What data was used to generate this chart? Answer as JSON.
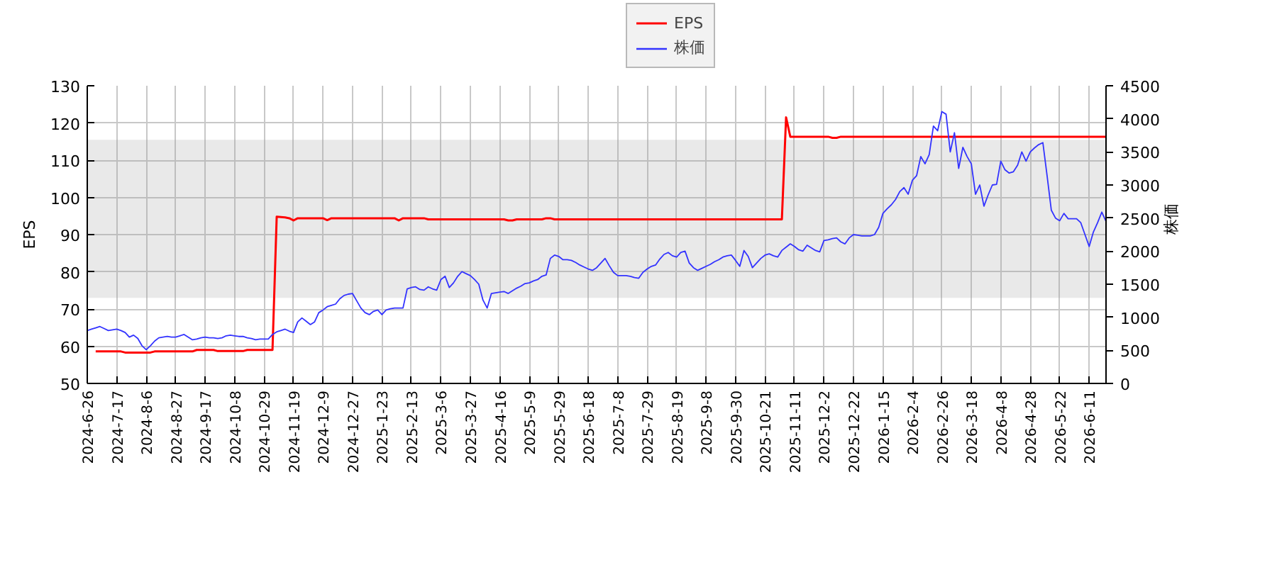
{
  "chart_data": {
    "type": "line",
    "ylabel": "EPS",
    "y2label": "株価",
    "grid": true,
    "legend": "top",
    "categories": [
      "2024-6-26",
      null,
      null,
      null,
      null,
      null,
      null,
      "2024-7-17",
      null,
      null,
      null,
      null,
      null,
      null,
      "2024-8-6",
      null,
      null,
      null,
      null,
      null,
      null,
      "2024-8-27",
      null,
      null,
      null,
      null,
      null,
      null,
      "2024-9-17",
      null,
      null,
      null,
      null,
      null,
      null,
      "2024-10-8",
      null,
      null,
      null,
      null,
      null,
      null,
      "2024-10-29",
      null,
      null,
      null,
      null,
      null,
      null,
      "2024-11-19",
      null,
      null,
      null,
      null,
      null,
      null,
      "2024-12-9",
      null,
      null,
      null,
      null,
      null,
      null,
      "2024-12-27",
      null,
      null,
      null,
      null,
      null,
      null,
      "2025-1-23",
      null,
      null,
      null,
      null,
      null,
      null,
      "2025-2-13",
      null,
      null,
      null,
      null,
      null,
      null,
      "2025-3-6",
      null,
      null,
      null,
      null,
      null,
      null,
      "2025-3-27",
      null,
      null,
      null,
      null,
      null,
      null,
      "2025-4-16",
      null,
      null,
      null,
      null,
      null,
      null,
      "2025-5-9",
      null,
      null,
      null,
      null,
      null,
      null,
      "2025-5-29",
      null,
      null,
      null,
      null,
      null,
      null,
      "2025-6-18",
      null,
      null,
      null,
      null,
      null,
      null,
      "2025-7-8",
      null,
      null,
      null,
      null,
      null,
      null,
      "2025-7-29",
      null,
      null,
      null,
      null,
      null,
      null,
      "2025-8-19",
      null,
      null,
      null,
      null,
      null,
      null,
      "2025-9-8",
      null,
      null,
      null,
      null,
      null,
      null,
      "2025-9-30",
      null,
      null,
      null,
      null,
      null,
      null,
      "2025-10-21",
      null,
      null,
      null,
      null,
      null,
      null,
      "2025-11-11",
      null,
      null,
      null,
      null,
      null,
      null,
      "2025-12-2",
      null,
      null,
      null,
      null,
      null,
      null,
      "2025-12-22",
      null,
      null,
      null,
      null,
      null,
      null,
      "2026-1-15",
      null,
      null,
      null,
      null,
      null,
      null,
      "2026-2-4",
      null,
      null,
      null,
      null,
      null,
      null,
      "2026-2-26",
      null,
      null,
      null,
      null,
      null,
      null,
      "2026-3-18",
      null,
      null,
      null,
      null,
      null,
      null,
      "2026-4-8",
      null,
      null,
      null,
      null,
      null,
      null,
      "2026-4-28",
      null,
      null,
      null,
      null,
      null,
      null,
      "2026-5-22",
      null,
      null,
      null,
      null,
      null,
      null,
      "2026-6-11",
      null,
      null,
      null,
      null
    ],
    "ylim": [
      50,
      130
    ],
    "yticks": [
      50,
      60,
      70,
      80,
      90,
      100,
      110,
      120,
      130
    ],
    "y2lim": [
      0,
      4500
    ],
    "y2ticks": [
      0,
      500,
      1000,
      1500,
      2000,
      2500,
      3000,
      3500,
      4000,
      4500
    ],
    "bands": [
      {
        "axis": "y",
        "from": 73,
        "to": 115.5,
        "color": "#999999"
      }
    ],
    "series": [
      {
        "name": "EPS",
        "color": "#ff0000",
        "values": [
          null,
          null,
          58.6,
          58.6,
          58.6,
          58.6,
          58.6,
          58.6,
          58.6,
          58.3,
          58.3,
          58.3,
          58.3,
          58.3,
          58.3,
          58.3,
          58.6,
          58.6,
          58.6,
          58.6,
          58.6,
          58.6,
          58.6,
          58.6,
          58.6,
          58.6,
          59.0,
          59.0,
          59.0,
          59.0,
          59.0,
          58.7,
          58.7,
          58.7,
          58.7,
          58.7,
          58.7,
          58.7,
          59.0,
          59.0,
          59.0,
          59.0,
          59.0,
          59.0,
          59.0,
          94.8,
          94.7,
          94.6,
          94.4,
          93.8,
          94.4,
          94.4,
          94.4,
          94.4,
          94.4,
          94.4,
          94.4,
          93.9,
          94.4,
          94.4,
          94.4,
          94.4,
          94.4,
          94.4,
          94.4,
          94.4,
          94.4,
          94.4,
          94.4,
          94.4,
          94.4,
          94.4,
          94.4,
          94.4,
          93.8,
          94.4,
          94.4,
          94.4,
          94.4,
          94.4,
          94.4,
          94.1,
          94.1,
          94.1,
          94.1,
          94.1,
          94.1,
          94.1,
          94.1,
          94.1,
          94.1,
          94.1,
          94.1,
          94.1,
          94.1,
          94.1,
          94.1,
          94.1,
          94.1,
          94.1,
          93.8,
          93.8,
          94.1,
          94.1,
          94.1,
          94.1,
          94.1,
          94.1,
          94.1,
          94.4,
          94.4,
          94.1,
          94.1,
          94.1,
          94.1,
          94.1,
          94.1,
          94.1,
          94.1,
          94.1,
          94.1,
          94.1,
          94.1,
          94.1,
          94.1,
          94.1,
          94.1,
          94.1,
          94.1,
          94.1,
          94.1,
          94.1,
          94.1,
          94.1,
          94.1,
          94.1,
          94.1,
          94.1,
          94.1,
          94.1,
          94.1,
          94.1,
          94.1,
          94.1,
          94.1,
          94.1,
          94.1,
          94.1,
          94.1,
          94.1,
          94.1,
          94.1,
          94.1,
          94.1,
          94.1,
          94.1,
          94.1,
          94.1,
          94.1,
          94.1,
          94.1,
          94.1,
          94.1,
          94.1,
          94.1,
          94.1,
          121.5,
          116.3,
          116.3,
          116.3,
          116.3,
          116.3,
          116.3,
          116.3,
          116.3,
          116.3,
          116.3,
          116.0,
          116.0,
          116.3,
          116.3,
          116.3,
          116.3,
          116.3,
          116.3,
          116.3,
          116.3,
          116.3,
          116.3,
          116.3,
          116.3,
          116.3,
          116.3,
          116.3,
          116.3,
          116.3,
          116.3,
          116.3,
          116.3,
          116.3,
          116.3,
          116.3,
          116.3,
          116.3,
          116.3,
          116.3,
          116.3,
          116.3,
          116.3,
          116.3,
          116.3,
          116.3,
          116.3,
          116.3,
          116.3,
          116.3,
          116.3,
          116.3,
          116.3,
          116.3,
          116.3,
          116.3,
          116.3,
          116.3,
          116.3,
          116.3,
          116.3,
          116.3,
          116.3,
          116.3,
          116.3,
          116.3,
          116.3,
          116.3,
          116.3,
          116.3,
          116.3,
          116.3,
          116.3,
          116.3,
          116.3,
          116.3,
          116.3
        ]
      },
      {
        "name": "株価",
        "color": "#3333ff",
        "axis": "y2",
        "values": [
          800,
          820,
          840,
          860,
          830,
          800,
          810,
          820,
          800,
          770,
          700,
          730,
          680,
          570,
          510,
          570,
          640,
          690,
          700,
          710,
          700,
          700,
          720,
          740,
          700,
          660,
          670,
          690,
          700,
          690,
          690,
          680,
          690,
          720,
          730,
          720,
          710,
          710,
          690,
          680,
          660,
          670,
          670,
          670,
          740,
          780,
          800,
          820,
          790,
          770,
          930,
          990,
          940,
          890,
          930,
          1070,
          1110,
          1160,
          1180,
          1200,
          1280,
          1330,
          1350,
          1360,
          1250,
          1140,
          1070,
          1040,
          1090,
          1110,
          1040,
          1110,
          1130,
          1140,
          1140,
          1140,
          1430,
          1450,
          1460,
          1420,
          1410,
          1460,
          1430,
          1410,
          1570,
          1620,
          1450,
          1520,
          1620,
          1690,
          1660,
          1630,
          1570,
          1500,
          1260,
          1140,
          1360,
          1370,
          1380,
          1390,
          1360,
          1400,
          1440,
          1470,
          1510,
          1520,
          1550,
          1570,
          1620,
          1640,
          1890,
          1940,
          1920,
          1870,
          1870,
          1860,
          1830,
          1790,
          1760,
          1730,
          1710,
          1750,
          1820,
          1890,
          1780,
          1680,
          1630,
          1630,
          1630,
          1620,
          1600,
          1590,
          1680,
          1730,
          1770,
          1790,
          1880,
          1950,
          1980,
          1930,
          1910,
          1980,
          2000,
          1820,
          1750,
          1710,
          1740,
          1770,
          1800,
          1840,
          1870,
          1910,
          1930,
          1940,
          1860,
          1770,
          2010,
          1920,
          1750,
          1820,
          1890,
          1940,
          1960,
          1930,
          1910,
          2010,
          2060,
          2110,
          2070,
          2020,
          2000,
          2090,
          2050,
          2010,
          1990,
          2160,
          2170,
          2190,
          2200,
          2140,
          2110,
          2200,
          2250,
          2240,
          2230,
          2230,
          2230,
          2250,
          2360,
          2570,
          2640,
          2700,
          2780,
          2900,
          2960,
          2860,
          3070,
          3140,
          3430,
          3320,
          3460,
          3890,
          3820,
          4110,
          4070,
          3500,
          3790,
          3250,
          3570,
          3430,
          3320,
          2860,
          3000,
          2680,
          2850,
          3000,
          3010,
          3360,
          3230,
          3180,
          3200,
          3300,
          3500,
          3360,
          3500,
          3560,
          3610,
          3640,
          3140,
          2620,
          2500,
          2460,
          2570,
          2490,
          2490,
          2490,
          2430,
          2250,
          2070,
          2290,
          2430,
          2590,
          2450
        ]
      }
    ]
  }
}
